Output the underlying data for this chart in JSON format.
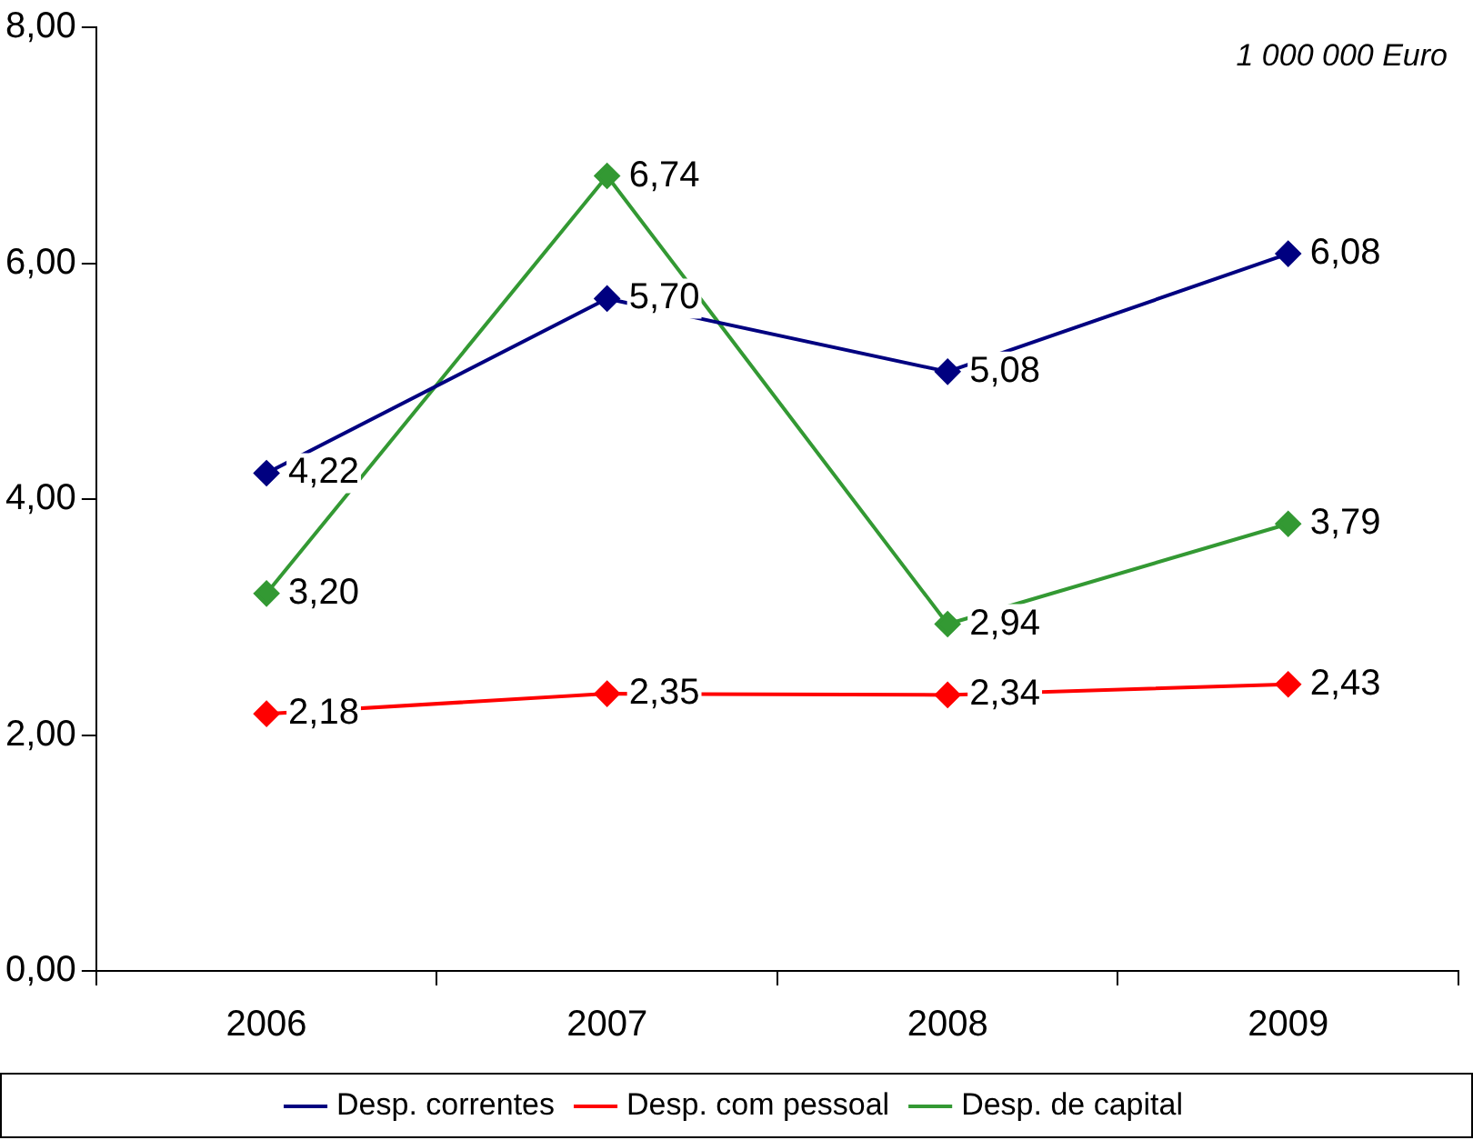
{
  "chart_data": {
    "type": "line",
    "categories": [
      "2006",
      "2007",
      "2008",
      "2009"
    ],
    "series": [
      {
        "name": "Desp. correntes",
        "color": "#000080",
        "values": [
          4.22,
          5.7,
          5.08,
          6.08
        ],
        "value_labels": [
          "4,22",
          "5,70",
          "5,08",
          "6,08"
        ]
      },
      {
        "name": "Desp. com pessoal",
        "color": "#ff0000",
        "values": [
          2.18,
          2.35,
          2.34,
          2.43
        ],
        "value_labels": [
          "2,18",
          "2,35",
          "2,34",
          "2,43"
        ]
      },
      {
        "name": "Desp. de capital",
        "color": "#339933",
        "values": [
          3.2,
          6.74,
          2.94,
          3.79
        ],
        "value_labels": [
          "3,20",
          "6,74",
          "2,94",
          "3,79"
        ]
      }
    ],
    "ylim": [
      0,
      8
    ],
    "yticks": [
      {
        "value": 0,
        "label": "0,00"
      },
      {
        "value": 2,
        "label": "2,00"
      },
      {
        "value": 4,
        "label": "4,00"
      },
      {
        "value": 6,
        "label": "6,00"
      },
      {
        "value": 8,
        "label": "8,00"
      }
    ],
    "annotations": [
      "1 000 000 Euro"
    ],
    "grid": false,
    "legend": "bottom",
    "marker": "diamond",
    "line_style": "solid"
  }
}
